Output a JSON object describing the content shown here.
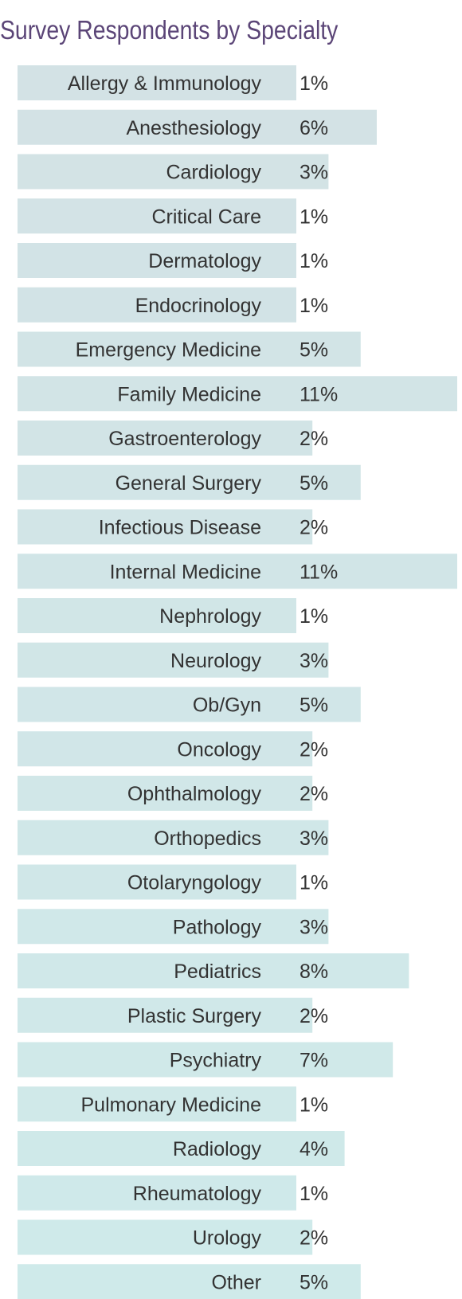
{
  "colors": {
    "title": "#5b4577",
    "bar_top": "#d3e2e5",
    "bar_bottom": "#cfeaea",
    "text": "#333333"
  },
  "chart_data": {
    "type": "bar",
    "orientation": "horizontal",
    "title": "Survey Respondents by Specialty",
    "xlabel": "",
    "ylabel": "",
    "unit": "%",
    "grid": false,
    "legend": "none",
    "xlim": [
      0,
      11
    ],
    "categories": [
      "Allergy & Immunology",
      "Anesthesiology",
      "Cardiology",
      "Critical Care",
      "Dermatology",
      "Endocrinology",
      "Emergency Medicine",
      "Family Medicine",
      "Gastroenterology",
      "General Surgery",
      "Infectious Disease",
      "Internal Medicine",
      "Nephrology",
      "Neurology",
      "Ob/Gyn",
      "Oncology",
      "Ophthalmology",
      "Orthopedics",
      "Otolaryngology",
      "Pathology",
      "Pediatrics",
      "Plastic Surgery",
      "Psychiatry",
      "Pulmonary Medicine",
      "Radiology",
      "Rheumatology",
      "Urology",
      "Other"
    ],
    "values": [
      1,
      6,
      3,
      1,
      1,
      1,
      5,
      11,
      2,
      5,
      2,
      11,
      1,
      3,
      5,
      2,
      2,
      3,
      1,
      3,
      8,
      2,
      7,
      1,
      4,
      1,
      2,
      5
    ],
    "value_labels": [
      "1%",
      "6%",
      "3%",
      "1%",
      "1%",
      "1%",
      "5%",
      "11%",
      "2%",
      "5%",
      "2%",
      "11%",
      "1%",
      "3%",
      "5%",
      "2%",
      "2%",
      "3%",
      "1%",
      "3%",
      "8%",
      "2%",
      "7%",
      "1%",
      "4%",
      "1%",
      "2%",
      "5%"
    ]
  }
}
